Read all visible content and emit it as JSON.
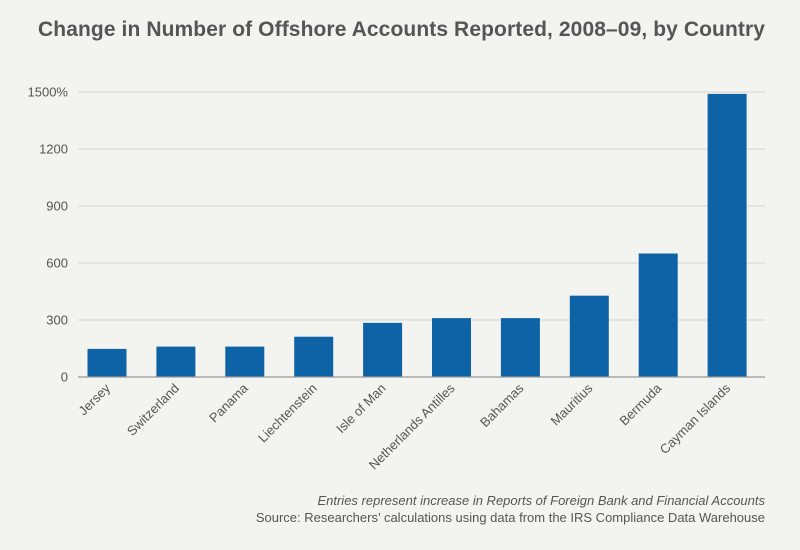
{
  "title": "Change in Number of Offshore Accounts Reported, 2008–09, by Country",
  "footnote": "Entries represent increase in Reports of Foreign Bank and Financial Accounts",
  "source": "Source: Researchers’ calculations using data from the IRS Compliance Data Warehouse",
  "colors": {
    "bar": "#0e63a6",
    "grid": "#d6d6d6",
    "text": "#555555",
    "background": "#f3f3f0"
  },
  "chart_data": {
    "type": "bar",
    "categories": [
      "Jersey",
      "Switzerland",
      "Panama",
      "Liechtenstein",
      "Isle of Man",
      "Netherlands Antilles",
      "Bahamas",
      "Mauritius",
      "Bermuda",
      "Cayman Islands"
    ],
    "values": [
      148,
      160,
      160,
      212,
      285,
      310,
      310,
      428,
      650,
      1490
    ],
    "ylim": [
      0,
      1500
    ],
    "yticks": [
      0,
      300,
      600,
      900,
      1200,
      1500
    ],
    "ytick_labels": [
      "0",
      "300",
      "600",
      "900",
      "1200",
      "1500%"
    ],
    "grid": true,
    "xlabel": "",
    "ylabel": ""
  }
}
